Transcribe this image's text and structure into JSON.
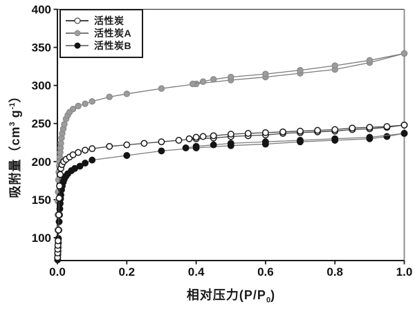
{
  "chart_data": {
    "type": "line",
    "title": "",
    "xlabel_text": "相对压力(P/P0)",
    "xlabel": {
      "pre": "相对压力(P/P",
      "sub": "0",
      "post": ")"
    },
    "ylabel_text": "吸附量（cm3 g-1）",
    "ylabel": {
      "pre": "吸附量（cm",
      "sup1": "3",
      "mid": " g",
      "sup2": "-1",
      "post": "）"
    },
    "xlim": [
      0.0,
      1.0
    ],
    "ylim": [
      70,
      400
    ],
    "x_ticks": [
      0.0,
      0.2,
      0.4,
      0.6,
      0.8,
      1.0
    ],
    "x_tick_labels": [
      "0.0",
      "0.2",
      "0.4",
      "0.6",
      "0.8",
      "1.0"
    ],
    "y_ticks": [
      100,
      150,
      200,
      250,
      300,
      350,
      400
    ],
    "y_tick_labels": [
      "100",
      "150",
      "200",
      "250",
      "300",
      "350",
      "400"
    ],
    "grid": false,
    "axis_color": "#1a1a1a",
    "legend": {
      "position": "top-left"
    },
    "series": [
      {
        "name": "活性炭",
        "marker": "open-circle",
        "marker_fill": "#ffffff",
        "marker_stroke": "#1a1a1a",
        "marker_radius": 4.2,
        "line_color": "#454545",
        "branches": {
          "adsorption": [
            [
              0.0004,
              74
            ],
            [
              0.0007,
              80
            ],
            [
              0.001,
              85
            ],
            [
              0.0014,
              90
            ],
            [
              0.002,
              96
            ],
            [
              0.003,
              110
            ],
            [
              0.004,
              130
            ],
            [
              0.005,
              152
            ],
            [
              0.006,
              168
            ],
            [
              0.008,
              183
            ],
            [
              0.01,
              191
            ],
            [
              0.013,
              196
            ],
            [
              0.018,
              200
            ],
            [
              0.025,
              203
            ],
            [
              0.035,
              206
            ],
            [
              0.045,
              209
            ],
            [
              0.06,
              212
            ],
            [
              0.08,
              215
            ],
            [
              0.1,
              217
            ],
            [
              0.15,
              220
            ],
            [
              0.2,
              222
            ],
            [
              0.25,
              224
            ],
            [
              0.3,
              226
            ],
            [
              0.35,
              228
            ],
            [
              0.4,
              230
            ],
            [
              0.45,
              231
            ],
            [
              0.5,
              233
            ],
            [
              0.55,
              234
            ],
            [
              0.6,
              235
            ],
            [
              0.65,
              237
            ],
            [
              0.7,
              238
            ],
            [
              0.75,
              239
            ],
            [
              0.8,
              240
            ],
            [
              0.85,
              242
            ],
            [
              0.9,
              243
            ],
            [
              0.95,
              245
            ],
            [
              1.0,
              248
            ]
          ],
          "desorption": [
            [
              1.0,
              248
            ],
            [
              0.95,
              246
            ],
            [
              0.9,
              245
            ],
            [
              0.85,
              244
            ],
            [
              0.8,
              242
            ],
            [
              0.75,
              241
            ],
            [
              0.7,
              240
            ],
            [
              0.65,
              239
            ],
            [
              0.6,
              238
            ],
            [
              0.55,
              237
            ],
            [
              0.5,
              236
            ],
            [
              0.45,
              234
            ],
            [
              0.42,
              233
            ],
            [
              0.4,
              232
            ],
            [
              0.38,
              230
            ]
          ]
        }
      },
      {
        "name": "活性炭A",
        "marker": "filled-circle",
        "marker_fill": "#9c9c9c",
        "marker_stroke": "#8c8c8c",
        "marker_radius": 4.0,
        "line_color": "#7a7a7a",
        "branches": {
          "adsorption": [
            [
              0.0008,
              110
            ],
            [
              0.0012,
              130
            ],
            [
              0.0016,
              148
            ],
            [
              0.002,
              160
            ],
            [
              0.003,
              176
            ],
            [
              0.004,
              186
            ],
            [
              0.005,
              194
            ],
            [
              0.006,
              200
            ],
            [
              0.007,
              206
            ],
            [
              0.008,
              212
            ],
            [
              0.009,
              218
            ],
            [
              0.01,
              224
            ],
            [
              0.012,
              231
            ],
            [
              0.014,
              237
            ],
            [
              0.017,
              243
            ],
            [
              0.02,
              249
            ],
            [
              0.025,
              256
            ],
            [
              0.03,
              261
            ],
            [
              0.035,
              265
            ],
            [
              0.045,
              269
            ],
            [
              0.06,
              273
            ],
            [
              0.08,
              276
            ],
            [
              0.1,
              279
            ],
            [
              0.15,
              285
            ],
            [
              0.2,
              289
            ],
            [
              0.3,
              296
            ],
            [
              0.4,
              302
            ],
            [
              0.5,
              307
            ],
            [
              0.6,
              311
            ],
            [
              0.7,
              316
            ],
            [
              0.8,
              321
            ],
            [
              0.9,
              330
            ],
            [
              1.0,
              342
            ]
          ],
          "desorption": [
            [
              1.0,
              342
            ],
            [
              0.9,
              333
            ],
            [
              0.8,
              326
            ],
            [
              0.7,
              320
            ],
            [
              0.6,
              315
            ],
            [
              0.5,
              311
            ],
            [
              0.45,
              308
            ],
            [
              0.42,
              305
            ],
            [
              0.39,
              302
            ]
          ]
        }
      },
      {
        "name": "活性炭B",
        "marker": "filled-circle",
        "marker_fill": "#141414",
        "marker_stroke": "#141414",
        "marker_radius": 4.2,
        "line_color": "#7d7d7d",
        "branches": {
          "adsorption": [
            [
              0.0005,
              71
            ],
            [
              0.0008,
              74
            ],
            [
              0.0012,
              78
            ],
            [
              0.0016,
              82
            ],
            [
              0.002,
              87
            ],
            [
              0.0025,
              93
            ],
            [
              0.003,
              99
            ],
            [
              0.004,
              110
            ],
            [
              0.005,
              121
            ],
            [
              0.006,
              130
            ],
            [
              0.007,
              138
            ],
            [
              0.008,
              145
            ],
            [
              0.009,
              151
            ],
            [
              0.01,
              156
            ],
            [
              0.012,
              163
            ],
            [
              0.014,
              168
            ],
            [
              0.017,
              173
            ],
            [
              0.02,
              177
            ],
            [
              0.025,
              181
            ],
            [
              0.03,
              184
            ],
            [
              0.04,
              188
            ],
            [
              0.05,
              191
            ],
            [
              0.065,
              194
            ],
            [
              0.08,
              198
            ],
            [
              0.1,
              202
            ],
            [
              0.2,
              208
            ],
            [
              0.3,
              214
            ],
            [
              0.4,
              218
            ],
            [
              0.5,
              221
            ],
            [
              0.6,
              223
            ],
            [
              0.7,
              226
            ],
            [
              0.8,
              228
            ],
            [
              0.9,
              230
            ],
            [
              0.95,
              233
            ],
            [
              1.0,
              237
            ]
          ],
          "desorption": [
            [
              1.0,
              237
            ],
            [
              0.9,
              232
            ],
            [
              0.8,
              230
            ],
            [
              0.7,
              228
            ],
            [
              0.6,
              226
            ],
            [
              0.5,
              224
            ],
            [
              0.45,
              222
            ],
            [
              0.4,
              220
            ],
            [
              0.37,
              218
            ]
          ]
        }
      }
    ]
  }
}
